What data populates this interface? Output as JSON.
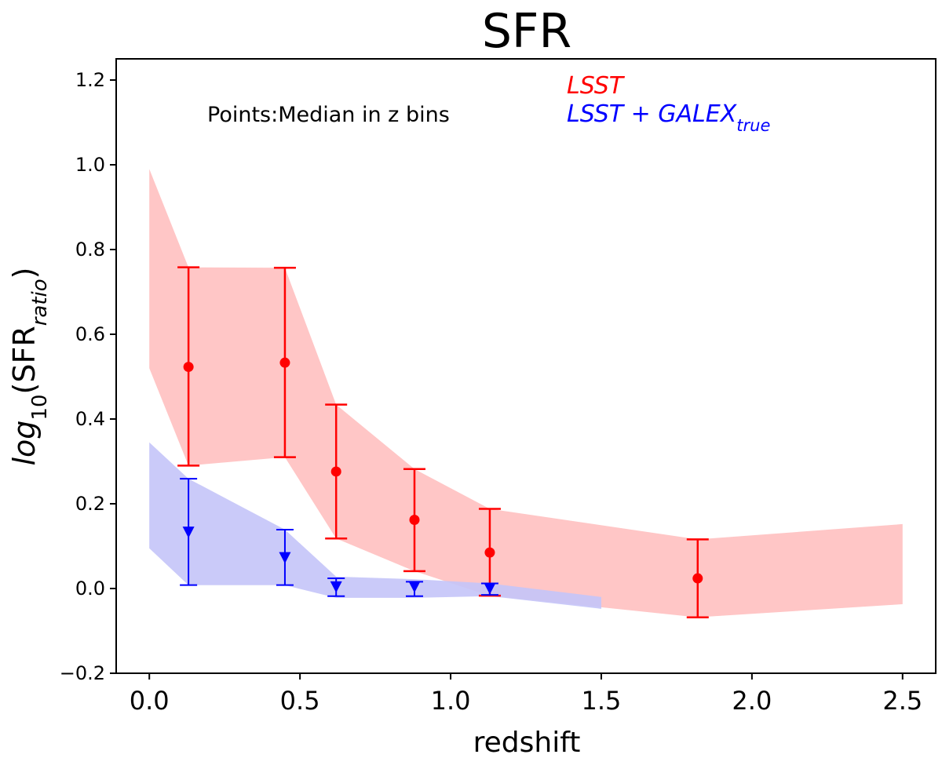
{
  "chart_data": {
    "type": "scatter",
    "title": "SFR",
    "xlabel": "redshift",
    "ylabel": {
      "prefix": "log",
      "sub1": "10",
      "open": "(SFR",
      "sub2": "ratio",
      "close": ")"
    },
    "xlim": [
      -0.11,
      2.61
    ],
    "ylim": [
      -0.2,
      1.25
    ],
    "xticks": [
      0.0,
      0.5,
      1.0,
      1.5,
      2.0,
      2.5
    ],
    "xtick_labels": [
      "0.0",
      "0.5",
      "1.0",
      "1.5",
      "2.0",
      "2.5"
    ],
    "yticks": [
      -0.2,
      0.0,
      0.2,
      0.4,
      0.6,
      0.8,
      1.0,
      1.2
    ],
    "ytick_labels": [
      "−0.2",
      "0.0",
      "0.2",
      "0.4",
      "0.6",
      "0.8",
      "1.0",
      "1.2"
    ],
    "annotation": "Points:Median in z bins",
    "legend": [
      {
        "name": "LSST",
        "color": "#ff0000",
        "label": "LSST",
        "sub": ""
      },
      {
        "name": "LSST+GALEX_true",
        "color": "#0000ff",
        "label": "LSST + GALEX",
        "sub": "true"
      }
    ],
    "series": [
      {
        "name": "LSST",
        "color": "#ff0000",
        "band_color": "#ffc6c6",
        "marker": "circle",
        "x": [
          0.13,
          0.45,
          0.62,
          0.88,
          1.13,
          1.82
        ],
        "y": [
          0.523,
          0.533,
          0.276,
          0.162,
          0.085,
          0.024
        ],
        "err_low": [
          0.29,
          0.31,
          0.118,
          0.041,
          -0.017,
          -0.068
        ],
        "err_high": [
          0.758,
          0.757,
          0.434,
          0.282,
          0.188,
          0.116
        ],
        "band": {
          "x": [
            0.0,
            0.13,
            0.45,
            0.62,
            0.88,
            1.13,
            1.82,
            2.5
          ],
          "lower": [
            0.52,
            0.29,
            0.31,
            0.118,
            0.041,
            -0.017,
            -0.068,
            -0.037
          ],
          "upper": [
            0.99,
            0.758,
            0.757,
            0.434,
            0.282,
            0.188,
            0.116,
            0.152
          ]
        }
      },
      {
        "name": "LSST+GALEX_true",
        "color": "#0000ff",
        "band_color": "#c4c4f8",
        "marker": "triangle-down",
        "x": [
          0.13,
          0.45,
          0.62,
          0.88,
          1.13
        ],
        "y": [
          0.133,
          0.073,
          0.004,
          0.004,
          0.0
        ],
        "err_low": [
          0.008,
          0.008,
          -0.018,
          -0.018,
          -0.015
        ],
        "err_high": [
          0.259,
          0.139,
          0.024,
          0.016,
          0.012
        ],
        "band": {
          "x": [
            0.0,
            0.13,
            0.45,
            0.62,
            0.88,
            1.13,
            1.5
          ],
          "lower": [
            0.095,
            0.008,
            0.008,
            -0.022,
            -0.022,
            -0.018,
            -0.048
          ],
          "upper": [
            0.345,
            0.259,
            0.139,
            0.028,
            0.022,
            0.012,
            -0.02
          ]
        }
      }
    ]
  }
}
